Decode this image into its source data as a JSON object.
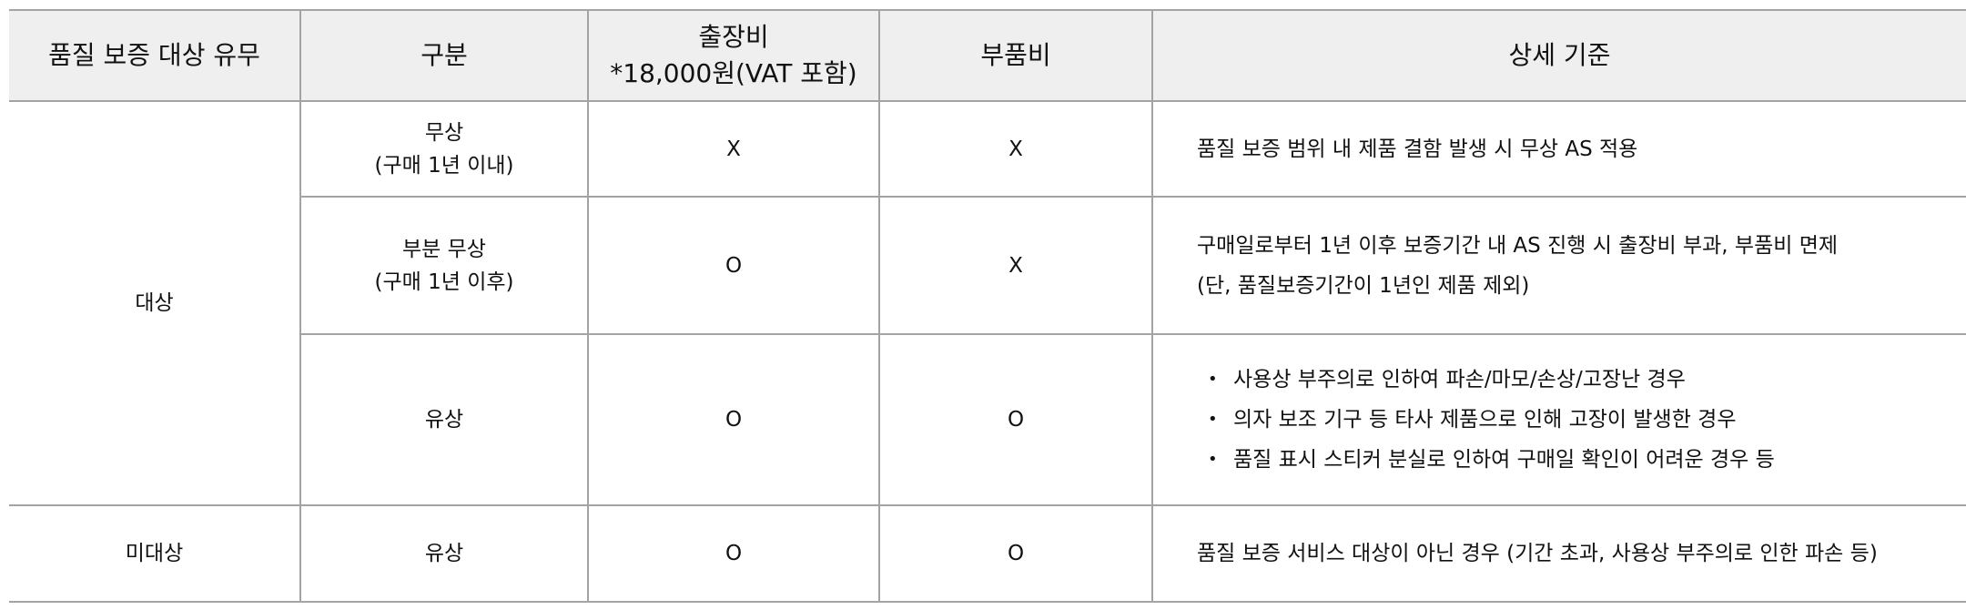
{
  "headers": [
    "품질 보증 대상 유무",
    "구분",
    "출장비",
    "*18,000원(VAT 포함)",
    "부품비",
    "상세 기준"
  ],
  "groups": {
    "covered": "대상",
    "not_covered": "미대상"
  },
  "rows": [
    {
      "type": "무상",
      "type_note": "(구매 1년 이내)",
      "visit_fee": "X",
      "parts_fee": "X",
      "detail": [
        "품질 보증 범위 내 제품 결함 발생 시 무상 AS 적용"
      ]
    },
    {
      "type": "부분 무상",
      "type_note": "(구매 1년 이후)",
      "visit_fee": "O",
      "parts_fee": "X",
      "detail": [
        "구매일로부터 1년 이후 보증기간 내 AS 진행 시 출장비 부과, 부품비 면제",
        "(단, 품질보증기간이 1년인 제품 제외)"
      ]
    },
    {
      "type": "유상",
      "visit_fee": "O",
      "parts_fee": "O",
      "bullets": [
        "사용상 부주의로 인하여 파손/마모/손상/고장난 경우",
        "의자 보조 기구 등 타사 제품으로 인해 고장이 발생한 경우",
        "품질 표시 스티커 분실로 인하여 구매일 확인이 어려운 경우 등"
      ]
    },
    {
      "type": "유상",
      "visit_fee": "O",
      "parts_fee": "O",
      "detail": [
        "품질 보증 서비스 대상이 아닌 경우 (기간 초과, 사용상 부주의로 인한 파손 등)"
      ]
    }
  ]
}
